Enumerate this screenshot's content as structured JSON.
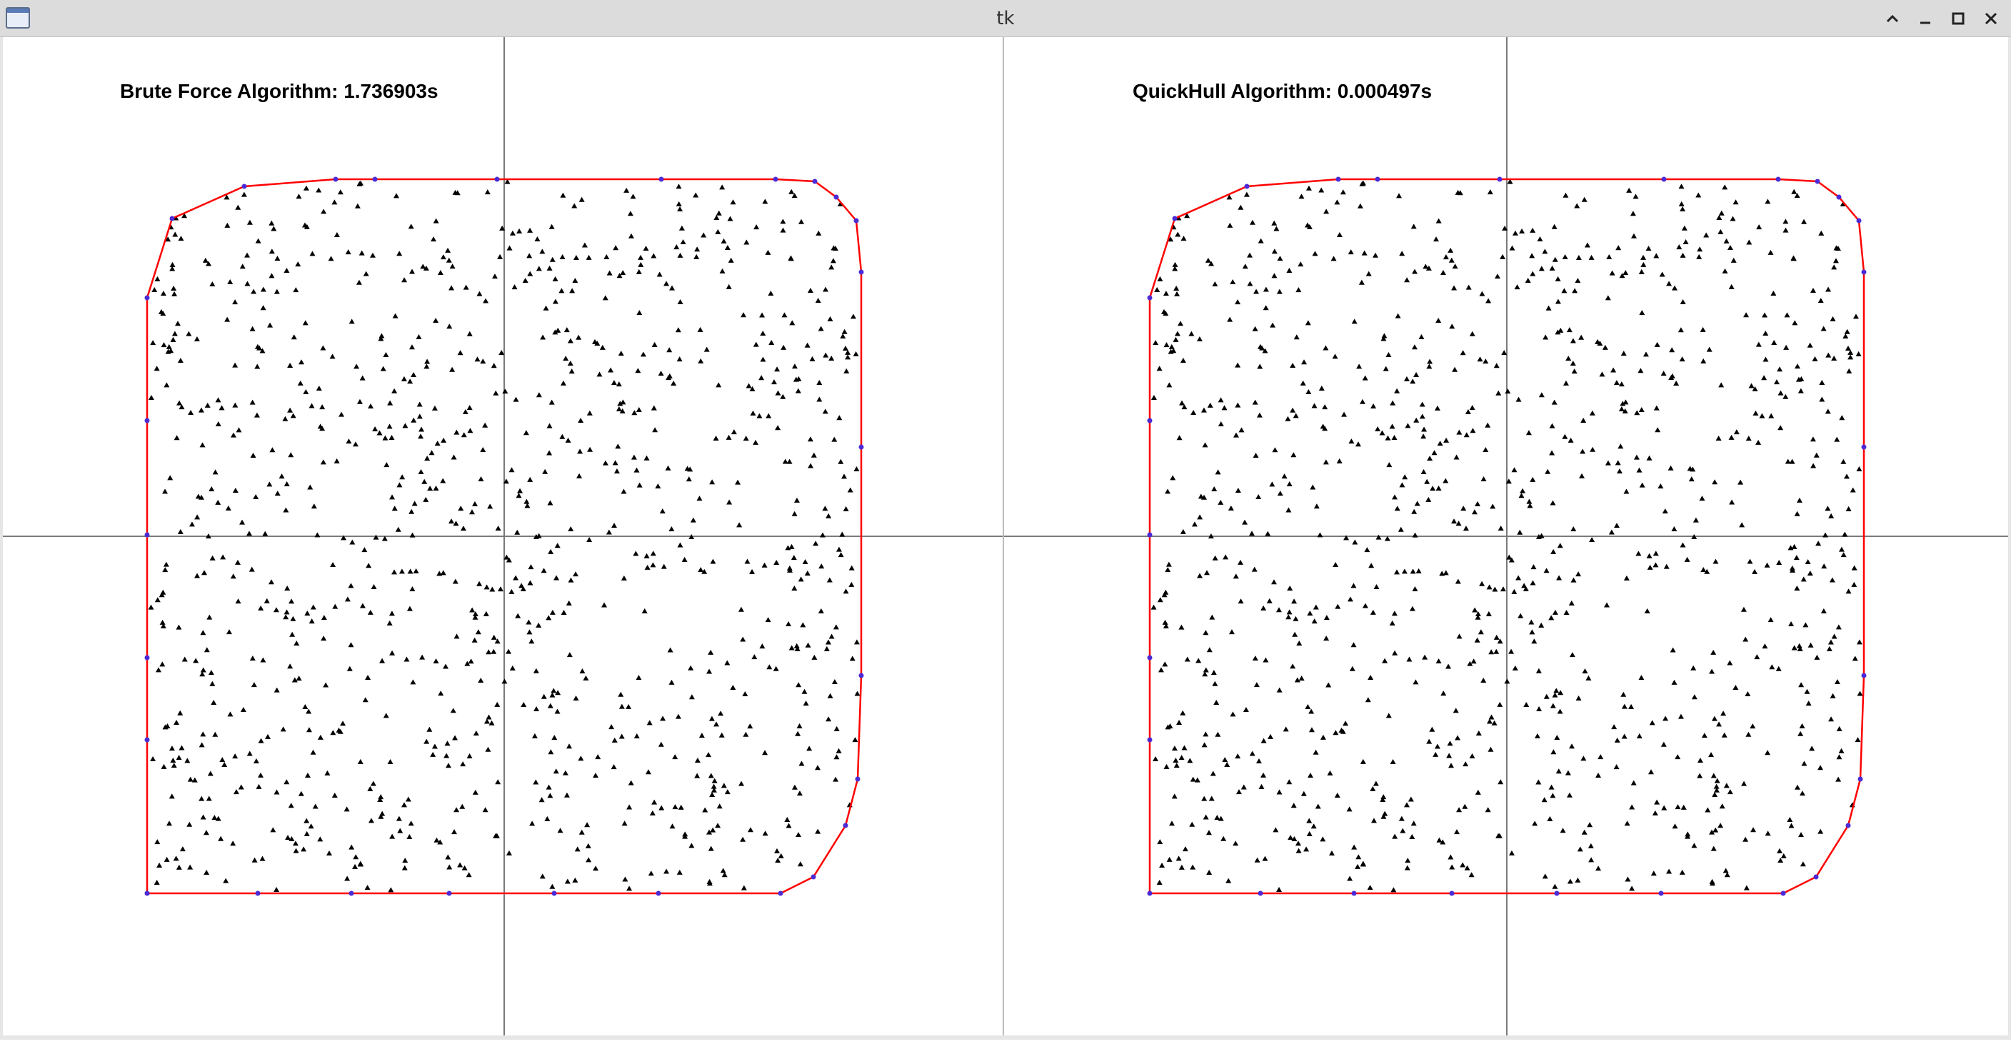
{
  "window": {
    "title": "tk",
    "buttons": [
      "shade",
      "minimize",
      "maximize",
      "close"
    ]
  },
  "colors": {
    "hull": "#ff0000",
    "hull_vertex": "#4b2bd6",
    "point": "#000000",
    "axis": "#7a7a7a",
    "background": "#ffffff"
  },
  "panels": [
    {
      "id": "brute-force",
      "label": "Brute Force Algorithm: 1.736903s"
    },
    {
      "id": "quickhull",
      "label": "QuickHull Algorithm: 0.000497s"
    }
  ],
  "scene": {
    "point_count": 1000,
    "x_range": [
      -500,
      500
    ],
    "y_range": [
      -500,
      500
    ],
    "hull_vertices": [
      [
        -500,
        -500
      ],
      [
        -500,
        -285
      ],
      [
        -500,
        -170
      ],
      [
        -500,
        2
      ],
      [
        -500,
        162
      ],
      [
        -500,
        334
      ],
      [
        -465,
        445
      ],
      [
        -364,
        490
      ],
      [
        -236,
        500
      ],
      [
        -181,
        500
      ],
      [
        -10,
        500
      ],
      [
        220,
        500
      ],
      [
        380,
        500
      ],
      [
        435,
        497
      ],
      [
        465,
        475
      ],
      [
        493,
        442
      ],
      [
        500,
        370
      ],
      [
        500,
        125
      ],
      [
        500,
        -195
      ],
      [
        495,
        -340
      ],
      [
        478,
        -405
      ],
      [
        433,
        -477
      ],
      [
        387,
        -500
      ],
      [
        216,
        -500
      ],
      [
        70,
        -500
      ],
      [
        -77,
        -500
      ],
      [
        -214,
        -500
      ],
      [
        -345,
        -500
      ]
    ]
  }
}
